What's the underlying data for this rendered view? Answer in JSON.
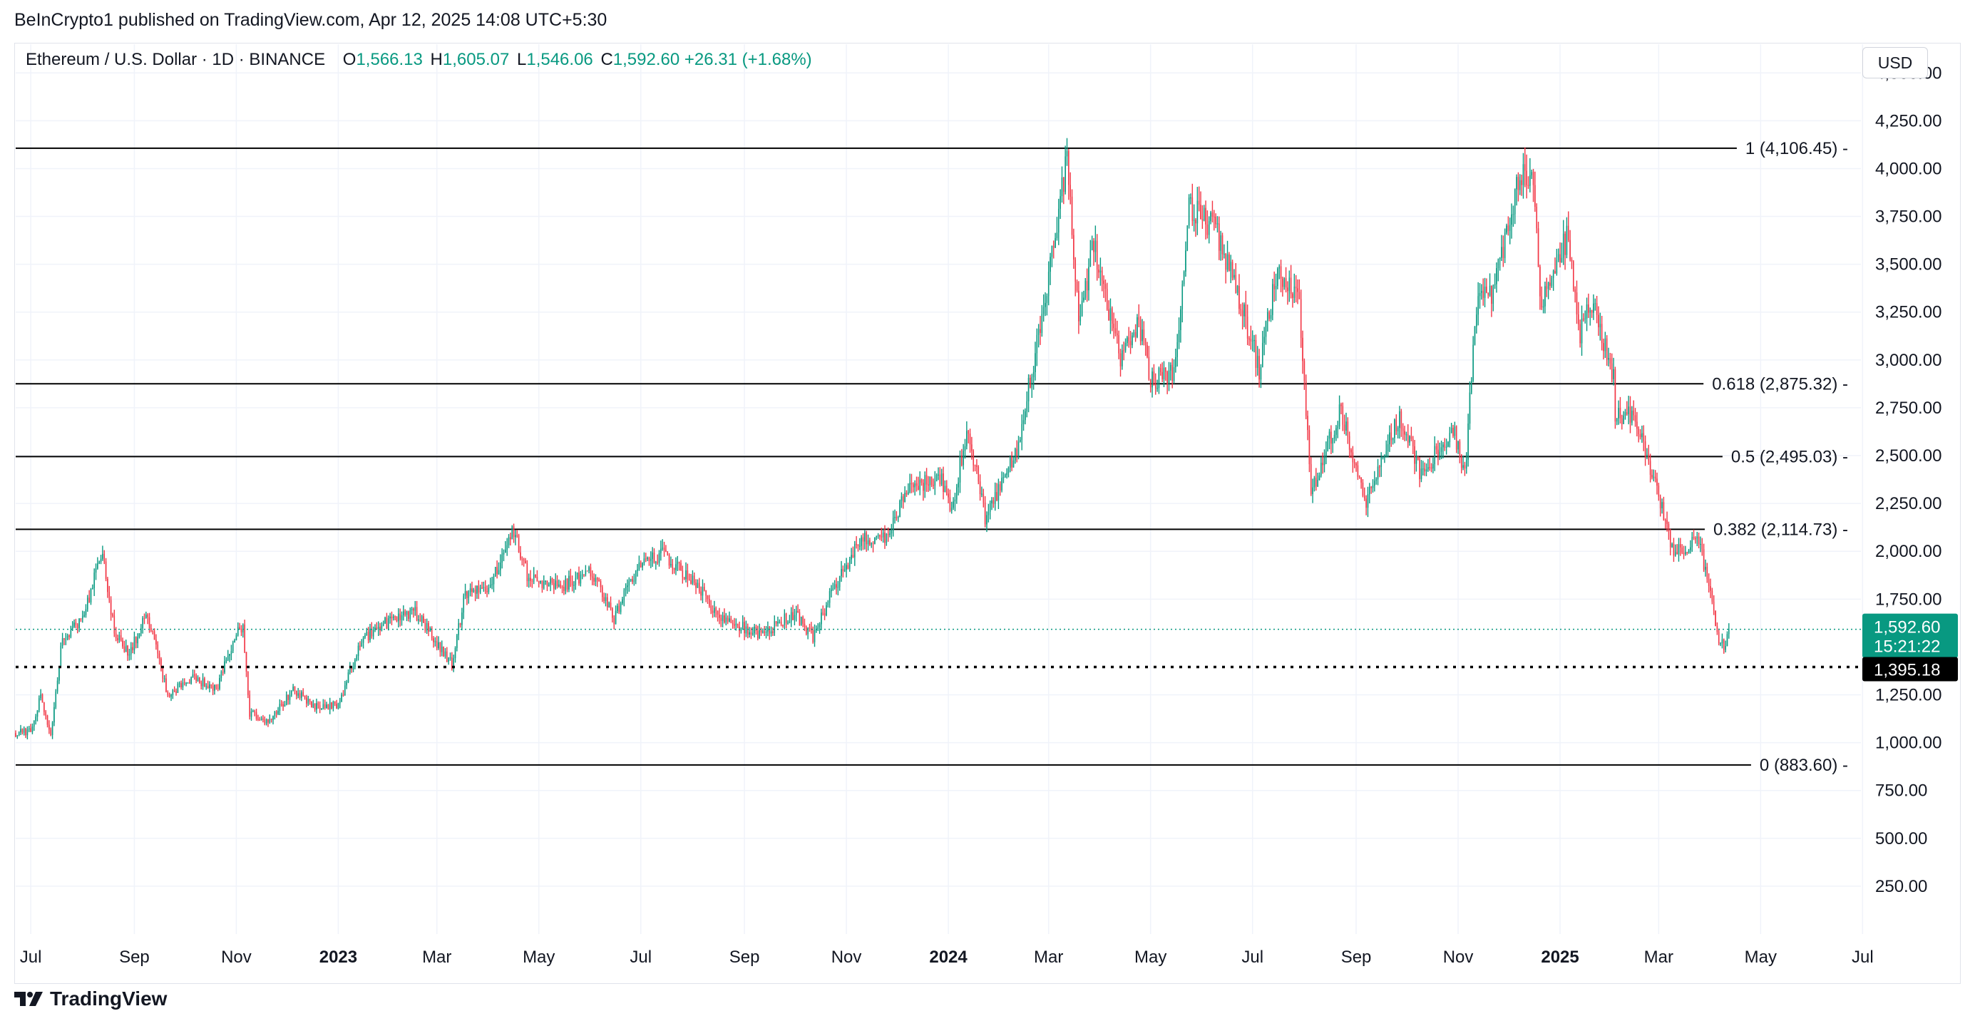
{
  "header": {
    "publisher_line": "BeInCrypto1 published on TradingView.com, Apr 12, 2025 14:08 UTC+5:30"
  },
  "legend": {
    "symbol": "Ethereum / U.S. Dollar · 1D · BINANCE",
    "open_label": "O",
    "open": "1,566.13",
    "high_label": "H",
    "high": "1,605.07",
    "low_label": "L",
    "low": "1,546.06",
    "close_label": "C",
    "close": "1,592.60",
    "change": "+26.31 (+1.68%)"
  },
  "currency": "USD",
  "footer": {
    "brand": "TradingView"
  },
  "colors": {
    "up": "#089981",
    "down": "#f23645",
    "grid": "#f0f3fa",
    "fib_line": "#000000",
    "last_price_bg": "#089981",
    "support_bg": "#000000"
  },
  "chart_data": {
    "type": "candlestick",
    "title": "Ethereum / U.S. Dollar · 1D · BINANCE",
    "timeframe": "1D",
    "ylim": [
      0,
      4650
    ],
    "y_ticks": [
      "250.00",
      "500.00",
      "750.00",
      "1,000.00",
      "1,250.00",
      "1,750.00",
      "2,000.00",
      "2,250.00",
      "2,500.00",
      "2,750.00",
      "3,000.00",
      "3,250.00",
      "3,500.00",
      "3,750.00",
      "4,000.00",
      "4,250.00",
      "4,500.00"
    ],
    "x_ticks": [
      {
        "label": "Jul",
        "date": "2022-07-01",
        "bold": false
      },
      {
        "label": "Sep",
        "date": "2022-09-01",
        "bold": false
      },
      {
        "label": "Nov",
        "date": "2022-11-01",
        "bold": false
      },
      {
        "label": "2023",
        "date": "2023-01-01",
        "bold": true
      },
      {
        "label": "Mar",
        "date": "2023-03-01",
        "bold": false
      },
      {
        "label": "May",
        "date": "2023-05-01",
        "bold": false
      },
      {
        "label": "Jul",
        "date": "2023-07-01",
        "bold": false
      },
      {
        "label": "Sep",
        "date": "2023-09-01",
        "bold": false
      },
      {
        "label": "Nov",
        "date": "2023-11-01",
        "bold": false
      },
      {
        "label": "2024",
        "date": "2024-01-01",
        "bold": true
      },
      {
        "label": "Mar",
        "date": "2024-03-01",
        "bold": false
      },
      {
        "label": "May",
        "date": "2024-05-01",
        "bold": false
      },
      {
        "label": "Jul",
        "date": "2024-07-01",
        "bold": false
      },
      {
        "label": "Sep",
        "date": "2024-09-01",
        "bold": false
      },
      {
        "label": "Nov",
        "date": "2024-11-01",
        "bold": false
      },
      {
        "label": "2025",
        "date": "2025-01-01",
        "bold": true
      },
      {
        "label": "Mar",
        "date": "2025-03-01",
        "bold": false
      },
      {
        "label": "May",
        "date": "2025-05-01",
        "bold": false
      },
      {
        "label": "Jul",
        "date": "2025-07-01",
        "bold": false
      }
    ],
    "x_range": [
      "2022-06-22",
      "2025-06-30"
    ],
    "last_candle_date": "2025-04-12",
    "fib_levels": [
      {
        "ratio": "1",
        "price": 4106.45,
        "label": "1 (4,106.45)"
      },
      {
        "ratio": "0.618",
        "price": 2875.32,
        "label": "0.618 (2,875.32)"
      },
      {
        "ratio": "0.5",
        "price": 2495.03,
        "label": "0.5 (2,495.03)"
      },
      {
        "ratio": "0.382",
        "price": 2114.73,
        "label": "0.382 (2,114.73)"
      },
      {
        "ratio": "0",
        "price": 883.6,
        "label": "0 (883.60)"
      }
    ],
    "last_price": {
      "price": 1592.6,
      "label": "1,592.60",
      "countdown": "15:21:22"
    },
    "support": {
      "price": 1395.18,
      "label": "1,395.18"
    },
    "price_path": [
      [
        "2022-06-22",
        1050
      ],
      [
        "2022-07-01",
        1060
      ],
      [
        "2022-07-07",
        1240
      ],
      [
        "2022-07-13",
        1040
      ],
      [
        "2022-07-20",
        1550
      ],
      [
        "2022-08-01",
        1650
      ],
      [
        "2022-08-13",
        2000
      ],
      [
        "2022-08-20",
        1580
      ],
      [
        "2022-08-29",
        1450
      ],
      [
        "2022-09-08",
        1700
      ],
      [
        "2022-09-15",
        1450
      ],
      [
        "2022-09-21",
        1250
      ],
      [
        "2022-10-05",
        1340
      ],
      [
        "2022-10-20",
        1280
      ],
      [
        "2022-11-01",
        1580
      ],
      [
        "2022-11-05",
        1610
      ],
      [
        "2022-11-09",
        1150
      ],
      [
        "2022-11-21",
        1110
      ],
      [
        "2022-12-05",
        1280
      ],
      [
        "2022-12-20",
        1180
      ],
      [
        "2023-01-01",
        1200
      ],
      [
        "2023-01-15",
        1540
      ],
      [
        "2023-02-01",
        1640
      ],
      [
        "2023-02-16",
        1680
      ],
      [
        "2023-03-10",
        1410
      ],
      [
        "2023-03-18",
        1790
      ],
      [
        "2023-04-01",
        1800
      ],
      [
        "2023-04-16",
        2110
      ],
      [
        "2023-04-25",
        1850
      ],
      [
        "2023-05-15",
        1820
      ],
      [
        "2023-06-01",
        1900
      ],
      [
        "2023-06-15",
        1650
      ],
      [
        "2023-06-30",
        1930
      ],
      [
        "2023-07-14",
        1990
      ],
      [
        "2023-08-01",
        1850
      ],
      [
        "2023-08-17",
        1660
      ],
      [
        "2023-09-11",
        1560
      ],
      [
        "2023-10-01",
        1680
      ],
      [
        "2023-10-12",
        1550
      ],
      [
        "2023-10-23",
        1780
      ],
      [
        "2023-11-10",
        2070
      ],
      [
        "2023-11-25",
        2060
      ],
      [
        "2023-12-09",
        2350
      ],
      [
        "2023-12-28",
        2380
      ],
      [
        "2024-01-03",
        2200
      ],
      [
        "2024-01-12",
        2650
      ],
      [
        "2024-01-23",
        2180
      ],
      [
        "2024-02-10",
        2500
      ],
      [
        "2024-02-28",
        3300
      ],
      [
        "2024-03-12",
        4060
      ],
      [
        "2024-03-19",
        3200
      ],
      [
        "2024-03-28",
        3600
      ],
      [
        "2024-04-13",
        3000
      ],
      [
        "2024-04-24",
        3180
      ],
      [
        "2024-05-01",
        2900
      ],
      [
        "2024-05-15",
        2930
      ],
      [
        "2024-05-24",
        3800
      ],
      [
        "2024-06-08",
        3700
      ],
      [
        "2024-06-24",
        3300
      ],
      [
        "2024-07-05",
        2950
      ],
      [
        "2024-07-15",
        3450
      ],
      [
        "2024-07-29",
        3300
      ],
      [
        "2024-08-05",
        2300
      ],
      [
        "2024-08-23",
        2750
      ],
      [
        "2024-09-06",
        2250
      ],
      [
        "2024-09-27",
        2700
      ],
      [
        "2024-10-10",
        2400
      ],
      [
        "2024-10-29",
        2650
      ],
      [
        "2024-11-05",
        2400
      ],
      [
        "2024-11-12",
        3300
      ],
      [
        "2024-11-22",
        3350
      ],
      [
        "2024-12-08",
        4000
      ],
      [
        "2024-12-16",
        3950
      ],
      [
        "2024-12-20",
        3300
      ],
      [
        "2025-01-06",
        3650
      ],
      [
        "2025-01-13",
        3150
      ],
      [
        "2025-01-20",
        3300
      ],
      [
        "2025-02-02",
        2900
      ],
      [
        "2025-02-03",
        2700
      ],
      [
        "2025-02-14",
        2720
      ],
      [
        "2025-02-25",
        2400
      ],
      [
        "2025-03-10",
        2000
      ],
      [
        "2025-03-25",
        2050
      ],
      [
        "2025-03-31",
        1820
      ],
      [
        "2025-04-06",
        1550
      ],
      [
        "2025-04-09",
        1500
      ],
      [
        "2025-04-12",
        1592.6
      ]
    ]
  }
}
